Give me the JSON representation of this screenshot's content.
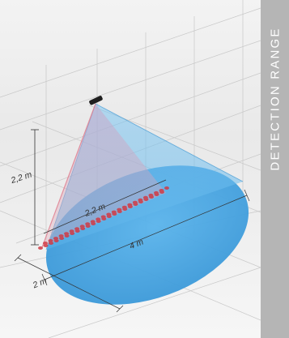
{
  "side_label": "DETECTION RANGE",
  "dimensions": {
    "height_label": "2,2 m",
    "row_length_label": "2,2 m",
    "diameter_label": "4 m",
    "depth_label": "2 m"
  },
  "colors": {
    "cone": "#4fb3ee",
    "ellipse": "#3d9fde",
    "sensor": "#1f1f1f",
    "dots": "#d03a45",
    "side_bar": "#b5b5b5"
  }
}
